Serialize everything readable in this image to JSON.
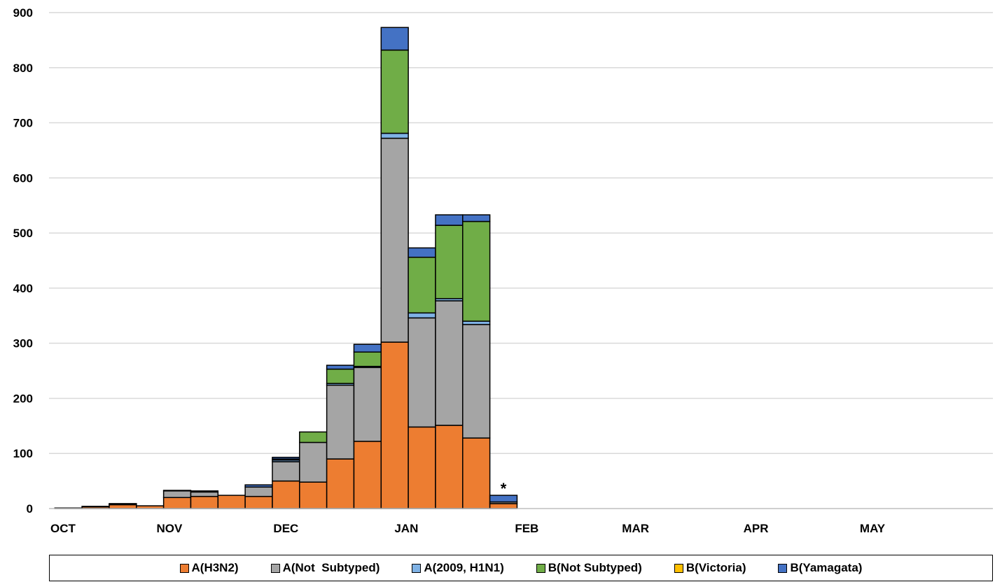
{
  "chart_data": {
    "type": "bar",
    "stacked": true,
    "title": "",
    "xlabel": "",
    "ylabel": "",
    "ylim": [
      0,
      900
    ],
    "yticks": [
      0,
      100,
      200,
      300,
      400,
      500,
      600,
      700,
      800,
      900
    ],
    "grid": true,
    "legend_position": "bottom",
    "x": [
      "2018-10-06",
      "2018-10-13",
      "2018-10-20",
      "2018-10-27",
      "2018-11-03",
      "2018-11-10",
      "2018-11-17",
      "2018-11-24",
      "2018-12-01",
      "2018-12-08",
      "2018-12-15",
      "2018-12-22",
      "2018-12-29",
      "2019-01-05",
      "2019-01-12",
      "2019-01-19",
      "2019-01-26"
    ],
    "month_labels": [
      {
        "label": "OCT",
        "date": "2018-10-01"
      },
      {
        "label": "NOV",
        "date": "2018-11-01"
      },
      {
        "label": "DEC",
        "date": "2018-12-01"
      },
      {
        "label": "JAN",
        "date": "2019-01-01"
      },
      {
        "label": "FEB",
        "date": "2019-02-01"
      },
      {
        "label": "MAR",
        "date": "2019-03-01"
      },
      {
        "label": "APR",
        "date": "2019-04-01"
      },
      {
        "label": "MAY",
        "date": "2019-05-01"
      }
    ],
    "x_axis_end": "2019-05-31",
    "series": [
      {
        "name": "A(H3N2)",
        "color": "#ED7D31",
        "values": [
          1,
          3,
          7,
          5,
          20,
          22,
          24,
          22,
          50,
          48,
          90,
          122,
          302,
          148,
          151,
          128,
          9
        ]
      },
      {
        "name": "A(Not  Subtyped)",
        "color": "#A5A5A5",
        "values": [
          0,
          1,
          1,
          0,
          12,
          8,
          0,
          17,
          35,
          72,
          134,
          134,
          370,
          198,
          226,
          206,
          3
        ]
      },
      {
        "name": "A(2009, H1N1)",
        "color": "#7FB2E5",
        "values": [
          0,
          0,
          0,
          0,
          0,
          0,
          0,
          0,
          3,
          0,
          3,
          2,
          9,
          9,
          4,
          6,
          0
        ]
      },
      {
        "name": "B(Not Subtyped)",
        "color": "#70AD47",
        "values": [
          0,
          0,
          0,
          0,
          0,
          0,
          0,
          0,
          2,
          19,
          26,
          26,
          151,
          101,
          133,
          181,
          0
        ]
      },
      {
        "name": "B(Victoria)",
        "color": "#FFC000",
        "values": [
          0,
          0,
          0,
          0,
          0,
          0,
          0,
          0,
          0,
          0,
          0,
          0,
          0,
          0,
          0,
          0,
          0
        ]
      },
      {
        "name": "B(Yamagata)",
        "color": "#4472C4",
        "values": [
          0,
          0,
          1,
          0,
          1,
          2,
          0,
          4,
          3,
          0,
          7,
          14,
          41,
          17,
          19,
          12,
          12
        ]
      }
    ],
    "annotations": [
      {
        "text": "*",
        "x": "2019-01-26"
      }
    ]
  }
}
